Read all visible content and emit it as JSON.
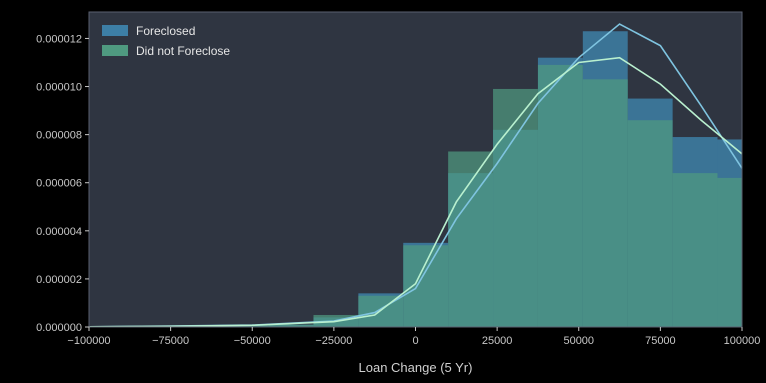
{
  "chart_data": {
    "type": "bar",
    "subtype": "histogram-with-kde",
    "title": "",
    "xlabel": "Loan Change (5 Yr)",
    "ylabel": "",
    "xlim": [
      -100000,
      100000
    ],
    "ylim": [
      0,
      1.31e-05
    ],
    "x_ticks": [
      -100000,
      -75000,
      -50000,
      -25000,
      0,
      25000,
      50000,
      75000,
      100000
    ],
    "x_tick_labels": [
      "−100000",
      "−75000",
      "−50000",
      "−25000",
      "0",
      "25000",
      "50000",
      "75000",
      "100000"
    ],
    "y_ticks": [
      0,
      2e-06,
      4e-06,
      6e-06,
      8e-06,
      1e-05,
      1.2e-05
    ],
    "y_tick_labels": [
      "0.000000",
      "0.000002",
      "0.000004",
      "0.000006",
      "0.000008",
      "0.000010",
      "0.000012"
    ],
    "grid": false,
    "legend_position": "top-left",
    "bin_edges": [
      -100000,
      -86250,
      -72500,
      -58750,
      -45000,
      -31250,
      -17500,
      -3750,
      10000,
      23750,
      37500,
      51250,
      65000,
      78750,
      92500,
      100000
    ],
    "series": [
      {
        "name": "Foreclosed",
        "color": "#3d7fa6",
        "kde_color": "#7fc4e0",
        "hist_values": [
          0,
          2e-08,
          4e-08,
          6e-08,
          1e-07,
          4e-07,
          1.4e-06,
          3.5e-06,
          6.4e-06,
          8.2e-06,
          1.12e-05,
          1.23e-05,
          9.5e-06,
          7.9e-06,
          7.8e-06
        ],
        "kde_x": [
          -100000,
          -75000,
          -50000,
          -25000,
          -12500,
          0,
          12500,
          25000,
          37500,
          50000,
          62500,
          75000,
          87500,
          100000
        ],
        "kde_y": [
          1e-08,
          4e-08,
          8e-08,
          2.5e-07,
          6e-07,
          1.6e-06,
          4.5e-06,
          6.8e-06,
          9.3e-06,
          1.12e-05,
          1.26e-05,
          1.17e-05,
          9.2e-06,
          6.6e-06
        ]
      },
      {
        "name": "Did not Foreclose",
        "color": "#4f9a80",
        "kde_color": "#b9f0cf",
        "hist_values": [
          0,
          2e-08,
          4e-08,
          6e-08,
          1e-07,
          5e-07,
          1.3e-06,
          3.4e-06,
          7.3e-06,
          9.9e-06,
          1.09e-05,
          1.03e-05,
          8.6e-06,
          6.4e-06,
          6.2e-06
        ],
        "kde_x": [
          -100000,
          -75000,
          -50000,
          -25000,
          -12500,
          0,
          12500,
          25000,
          37500,
          50000,
          62500,
          75000,
          87500,
          100000
        ],
        "kde_y": [
          1e-08,
          3e-08,
          7e-08,
          2.2e-07,
          5e-07,
          1.8e-06,
          5.2e-06,
          7.6e-06,
          9.7e-06,
          1.1e-05,
          1.12e-05,
          1.01e-05,
          8.6e-06,
          7.2e-06
        ]
      }
    ]
  }
}
